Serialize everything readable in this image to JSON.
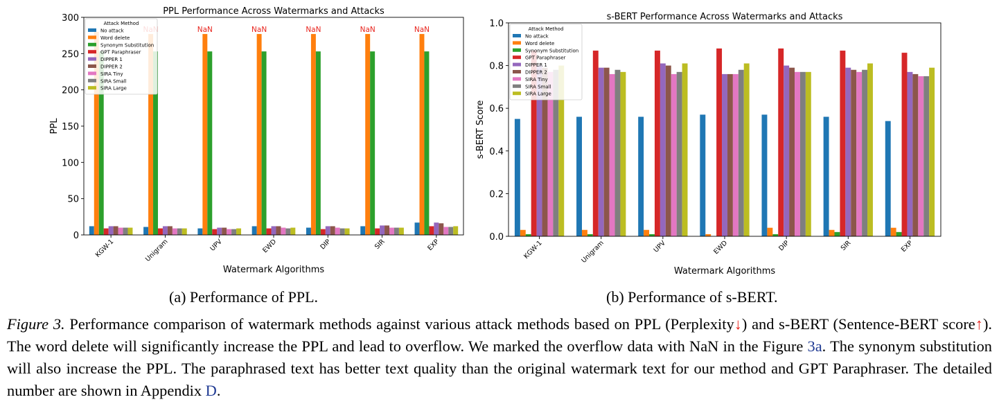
{
  "chart_data": [
    {
      "type": "bar",
      "title": "PPL Performance Across Watermarks and Attacks",
      "xlabel": "Watermark Algorithms",
      "ylabel": "PPL",
      "ylim": [
        0,
        300
      ],
      "yticks": [
        "0",
        "50",
        "100",
        "150",
        "200",
        "250",
        "300"
      ],
      "categories": [
        "KGW-1",
        "Unigram",
        "UPV",
        "EWD",
        "DIP",
        "SIR",
        "EXP"
      ],
      "legend_title": "Attack Method",
      "legend_position": "top-left",
      "nan_label": "NaN",
      "nan_categories": [
        1,
        2,
        3,
        4,
        5,
        6
      ],
      "series": [
        {
          "name": "No attack",
          "color": "#1f77b4",
          "values": [
            12,
            11,
            9,
            12,
            10,
            12,
            17
          ]
        },
        {
          "name": "Word delete",
          "color": "#ff7f0e",
          "values": [
            280,
            277,
            277,
            277,
            277,
            277,
            277
          ]
        },
        {
          "name": "Synonym Substitution",
          "color": "#2ca02c",
          "values": [
            253,
            253,
            253,
            253,
            253,
            253,
            253
          ]
        },
        {
          "name": "GPT Paraphraser",
          "color": "#d62728",
          "values": [
            9,
            9,
            8,
            9,
            8,
            9,
            12
          ]
        },
        {
          "name": "DIPPER 1",
          "color": "#9467bd",
          "values": [
            12,
            12,
            10,
            12,
            12,
            13,
            17
          ]
        },
        {
          "name": "DIPPER 2",
          "color": "#8c564b",
          "values": [
            12,
            12,
            10,
            12,
            12,
            13,
            16
          ]
        },
        {
          "name": "SIRA Tiny",
          "color": "#e377c2",
          "values": [
            10,
            9,
            8,
            10,
            10,
            10,
            11
          ]
        },
        {
          "name": "SIRA Small",
          "color": "#7f7f7f",
          "values": [
            10,
            9,
            8,
            9,
            9,
            10,
            11
          ]
        },
        {
          "name": "SIRA Large",
          "color": "#bcbd22",
          "values": [
            10,
            9,
            9,
            10,
            9,
            10,
            12
          ]
        }
      ]
    },
    {
      "type": "bar",
      "title": "s-BERT Performance Across Watermarks and Attacks",
      "xlabel": "Watermark Algorithms",
      "ylabel": "s-BERT Score",
      "ylim": [
        0,
        1.0
      ],
      "yticks": [
        "0.0",
        "0.2",
        "0.4",
        "0.6",
        "0.8",
        "1.0"
      ],
      "categories": [
        "KGW-1",
        "Unigram",
        "UPV",
        "EWD",
        "DIP",
        "SIR",
        "EXP"
      ],
      "legend_title": "Attack Method",
      "legend_position": "top-left",
      "series": [
        {
          "name": "No attack",
          "color": "#1f77b4",
          "values": [
            0.55,
            0.56,
            0.56,
            0.57,
            0.57,
            0.56,
            0.54
          ]
        },
        {
          "name": "Word delete",
          "color": "#ff7f0e",
          "values": [
            0.03,
            0.03,
            0.03,
            0.01,
            0.04,
            0.03,
            0.04
          ]
        },
        {
          "name": "Synonym Substitution",
          "color": "#2ca02c",
          "values": [
            0.01,
            0.01,
            0.01,
            0.0,
            0.01,
            0.02,
            0.02
          ]
        },
        {
          "name": "GPT Paraphraser",
          "color": "#d62728",
          "values": [
            0.87,
            0.87,
            0.87,
            0.88,
            0.88,
            0.87,
            0.86
          ]
        },
        {
          "name": "DIPPER 1",
          "color": "#9467bd",
          "values": [
            0.8,
            0.79,
            0.81,
            0.76,
            0.8,
            0.79,
            0.77
          ]
        },
        {
          "name": "DIPPER 2",
          "color": "#8c564b",
          "values": [
            0.79,
            0.79,
            0.8,
            0.76,
            0.79,
            0.78,
            0.76
          ]
        },
        {
          "name": "SIRA Tiny",
          "color": "#e377c2",
          "values": [
            0.77,
            0.76,
            0.76,
            0.76,
            0.77,
            0.77,
            0.75
          ]
        },
        {
          "name": "SIRA Small",
          "color": "#7f7f7f",
          "values": [
            0.78,
            0.78,
            0.77,
            0.78,
            0.77,
            0.78,
            0.75
          ]
        },
        {
          "name": "SIRA Large",
          "color": "#bcbd22",
          "values": [
            0.8,
            0.77,
            0.81,
            0.81,
            0.77,
            0.81,
            0.79
          ]
        }
      ]
    }
  ],
  "subcaptions": {
    "a": "(a) Performance of PPL.",
    "b": "(b) Performance of s-BERT."
  },
  "caption": {
    "label": "Figure 3.",
    "part1": " Performance comparison of watermark methods against various attack methods based on PPL (Perplexity",
    "arrow_down": "↓",
    "part2": ") and s-BERT (Sentence-BERT score",
    "arrow_up": "↑",
    "part3": "). The word delete will significantly increase the PPL and lead to overflow. We marked the overflow data with NaN in the Figure ",
    "ref_fig": "3a",
    "part4": ". The synonym substitution will also increase the PPL. The paraphrased text has better text quality than the original watermark text for our method and GPT Paraphraser. The detailed number are shown in Appendix ",
    "ref_appendix": "D",
    "part5": "."
  }
}
